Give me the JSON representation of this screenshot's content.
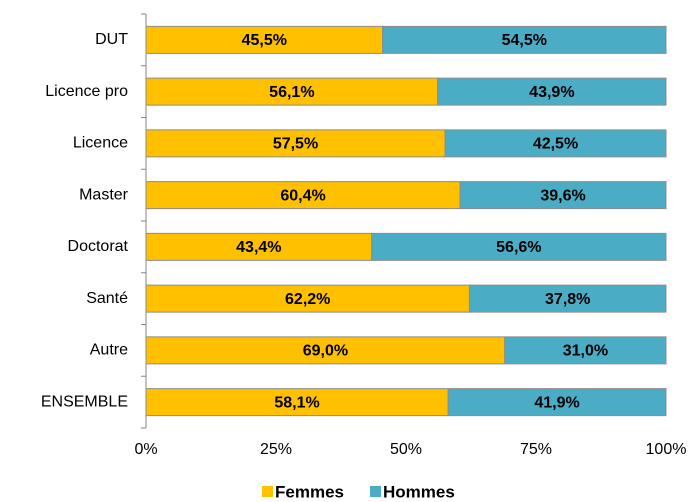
{
  "chart_data": {
    "type": "stacked-barh",
    "categories": [
      "DUT",
      "Licence pro",
      "Licence",
      "Master",
      "Doctorat",
      "Santé",
      "Autre",
      "ENSEMBLE"
    ],
    "series": [
      {
        "name": "Femmes",
        "color": "#FFC000",
        "values": [
          45.5,
          56.1,
          57.5,
          60.4,
          43.4,
          62.2,
          69.0,
          58.1
        ],
        "value_labels": [
          "45,5%",
          "56,1%",
          "57,5%",
          "60,4%",
          "43,4%",
          "62,2%",
          "69,0%",
          "58,1%"
        ]
      },
      {
        "name": "Hommes",
        "color": "#4BACC6",
        "values": [
          54.5,
          43.9,
          42.5,
          39.6,
          56.6,
          37.8,
          31.0,
          41.9
        ],
        "value_labels": [
          "54,5%",
          "43,9%",
          "42,5%",
          "39,6%",
          "56,6%",
          "37,8%",
          "31,0%",
          "41,9%"
        ]
      }
    ],
    "xlim": [
      0,
      100
    ],
    "xticks": [
      {
        "value": 0,
        "label": "0%"
      },
      {
        "value": 25,
        "label": "25%"
      },
      {
        "value": 50,
        "label": "50%"
      },
      {
        "value": 75,
        "label": "75%"
      },
      {
        "value": 100,
        "label": "100%"
      }
    ],
    "legend": "bottom"
  }
}
